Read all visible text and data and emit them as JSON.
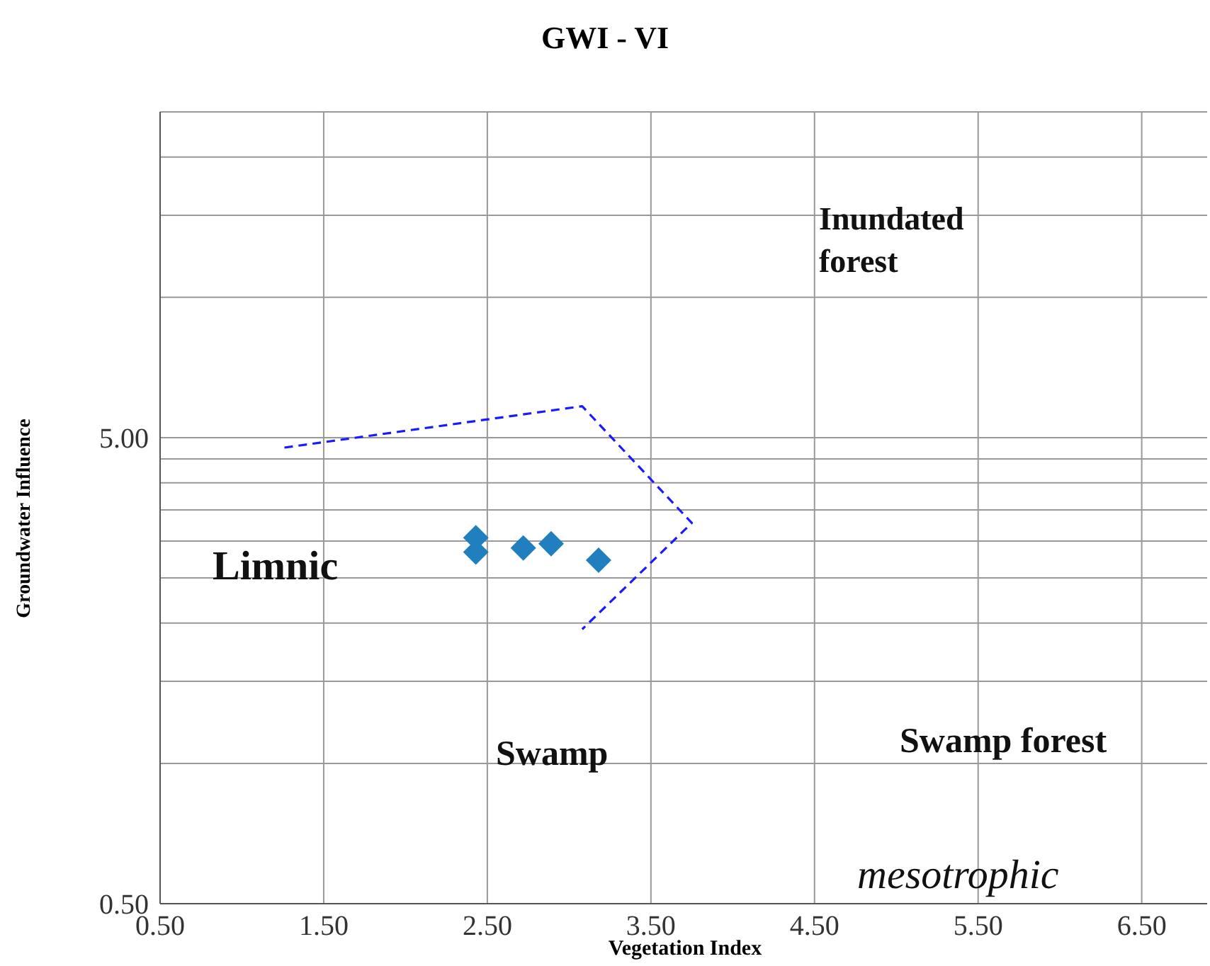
{
  "chart_data": {
    "type": "scatter",
    "title": "GWI - VI",
    "xlabel": "Vegetation Index",
    "ylabel": "Groundwater Influence",
    "log": "y",
    "xlim": [
      0.5,
      6.9
    ],
    "xticks": [
      {
        "value": 0.5,
        "label": "0.50"
      },
      {
        "value": 1.5,
        "label": "1.50"
      },
      {
        "value": 2.5,
        "label": "2.50"
      },
      {
        "value": 3.5,
        "label": "3.50"
      },
      {
        "value": 4.5,
        "label": "4.50"
      },
      {
        "value": 5.5,
        "label": "5.50"
      },
      {
        "value": 6.5,
        "label": "6.50"
      }
    ],
    "ylim": [
      0.5,
      25
    ],
    "yticks": [
      {
        "value": 0.5,
        "label": "0.50"
      },
      {
        "value": 1,
        "label": null
      },
      {
        "value": 1.5,
        "label": null
      },
      {
        "value": 2,
        "label": null
      },
      {
        "value": 2.5,
        "label": null
      },
      {
        "value": 3,
        "label": null
      },
      {
        "value": 3.5,
        "label": null
      },
      {
        "value": 4,
        "label": null
      },
      {
        "value": 4.5,
        "label": null
      },
      {
        "value": 5,
        "label": "5.00"
      },
      {
        "value": 10,
        "label": null
      },
      {
        "value": 15,
        "label": null
      },
      {
        "value": 20,
        "label": null
      },
      {
        "value": 25,
        "label": null
      }
    ],
    "grid": true,
    "legend": false,
    "series": [
      {
        "type": "scatter",
        "marker": "diamond",
        "color": "#1f7fbf",
        "x": [
          2.43,
          2.43,
          2.72,
          2.89,
          3.18
        ],
        "values": [
          3.05,
          2.84,
          2.9,
          2.96,
          2.73
        ]
      },
      {
        "type": "line",
        "marker": "none",
        "line_style": "dashed",
        "color": "#1a1aff",
        "x": [
          1.26,
          3.08,
          3.75,
          3.08
        ],
        "values": [
          4.76,
          5.84,
          3.28,
          1.94
        ]
      }
    ],
    "annotations": [
      "Inundated forest",
      "Limnic",
      "Swamp",
      "Swamp forest",
      "mesotrophic"
    ]
  }
}
